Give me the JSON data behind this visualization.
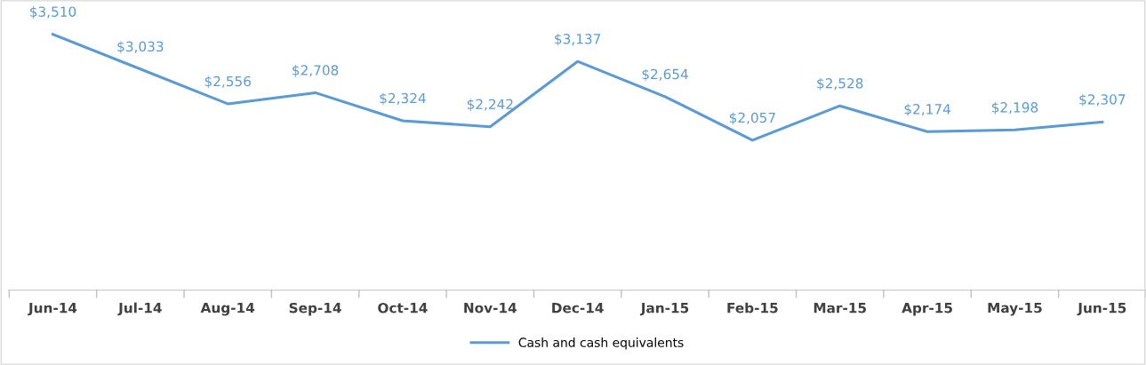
{
  "chart_data": {
    "type": "line",
    "categories": [
      "Jun-14",
      "Jul-14",
      "Aug-14",
      "Sep-14",
      "Oct-14",
      "Nov-14",
      "Dec-14",
      "Jan-15",
      "Feb-15",
      "Mar-15",
      "Apr-15",
      "May-15",
      "Jun-15"
    ],
    "series": [
      {
        "name": "Cash and cash equivalents",
        "color": "#5b9bd5",
        "values": [
          3510,
          3033,
          2556,
          2708,
          2324,
          2242,
          3137,
          2654,
          2057,
          2528,
          2174,
          2198,
          2307
        ],
        "value_labels": [
          "$3,510",
          "$3,033",
          "$2,556",
          "$2,708",
          "$2,324",
          "$2,242",
          "$3,137",
          "$2,654",
          "$2,057",
          "$2,528",
          "$2,174",
          "$2,198",
          "$2,307"
        ]
      }
    ],
    "tick_labels": "x",
    "grid": false,
    "legend": "bottom",
    "marker": "none",
    "line_style": "solid"
  }
}
